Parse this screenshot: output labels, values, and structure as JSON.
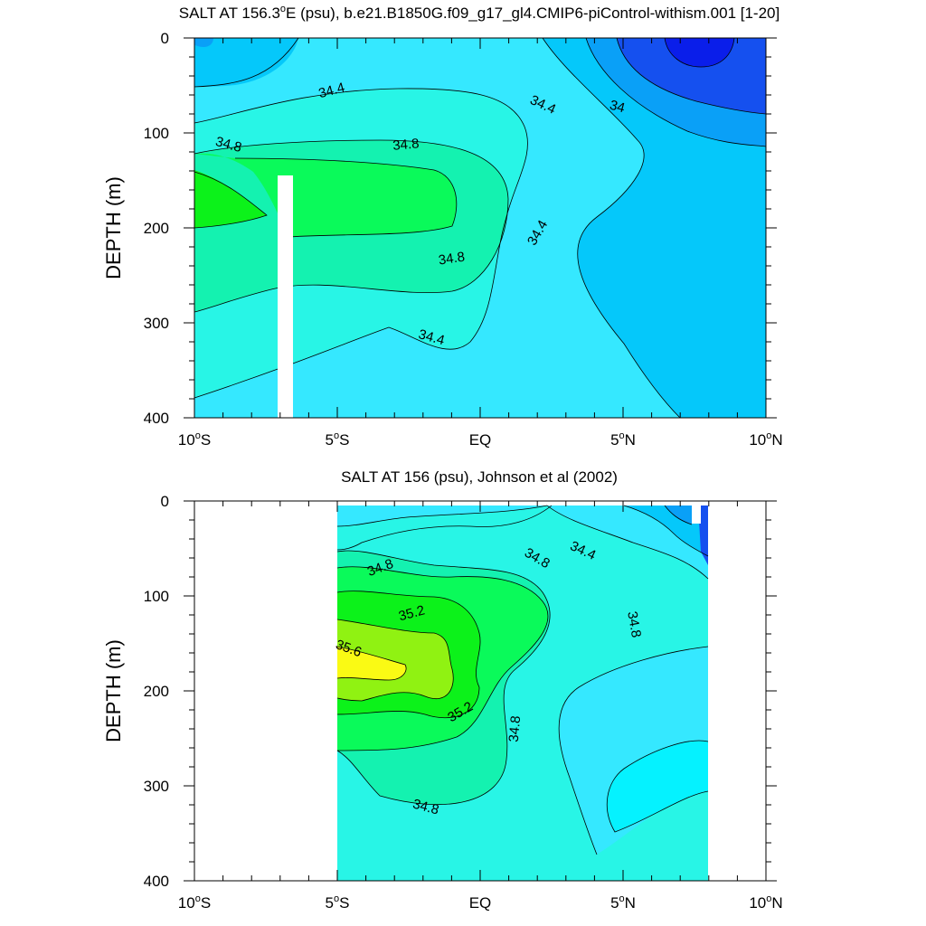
{
  "chart_data": [
    {
      "type": "contour",
      "title": "SALT AT 156.3°E (psu), b.e21.B1850G.f09_g17_gl4.CMIP6-piControl-withism.001 [1-20]",
      "title_parts": {
        "main": "SALT AT 156.3",
        "sup": "o",
        "rest": "E (psu), b.e21.B1850G.f09_g17_gl4.CMIP6-piControl-withism.001 [1-20]"
      },
      "ylabel": "DEPTH (m)",
      "xlim": [
        -10,
        10
      ],
      "ylim": [
        0,
        400
      ],
      "y_inverted": true,
      "x_ticks": [
        {
          "value": -10,
          "num": "10",
          "hemi": "S"
        },
        {
          "value": -5,
          "num": "5",
          "hemi": "S"
        },
        {
          "value": 0,
          "num": "EQ",
          "hemi": ""
        },
        {
          "value": 5,
          "num": "5",
          "hemi": "N"
        },
        {
          "value": 10,
          "num": "10",
          "hemi": "N"
        }
      ],
      "y_ticks": [
        "0",
        "100",
        "200",
        "300",
        "400"
      ],
      "y_tick_values": [
        0,
        100,
        200,
        300,
        400
      ],
      "contour_labels": [
        {
          "text": "34.4",
          "lat": -5.2,
          "depth": 55,
          "rot": -15
        },
        {
          "text": "34.8",
          "lat": -8.8,
          "depth": 112,
          "rot": 15
        },
        {
          "text": "34.8",
          "lat": -2.6,
          "depth": 112,
          "rot": -5
        },
        {
          "text": "34.4",
          "lat": 2.2,
          "depth": 70,
          "rot": 25
        },
        {
          "text": "34",
          "lat": 4.8,
          "depth": 72,
          "rot": 15
        },
        {
          "text": "34.4",
          "lat": 2.0,
          "depth": 205,
          "rot": -60
        },
        {
          "text": "34.8",
          "lat": -1.0,
          "depth": 232,
          "rot": -8
        },
        {
          "text": "34.4",
          "lat": -1.7,
          "depth": 315,
          "rot": 15
        }
      ],
      "colors": {
        "c33.6": "#0a1eea",
        "c33.8": "#1550ef",
        "c34.0": "#0aa0f7",
        "c34.2": "#05c8fa",
        "c34.4": "#35e8ff",
        "c34.6": "#28f5e6",
        "c34.8": "#14f2b0",
        "c35.0": "#0afa5a",
        "c35.2": "#0cf21a",
        "c35.4": "#90f212",
        "c35.6": "#fafa14"
      }
    },
    {
      "type": "contour",
      "title": "SALT AT 156 (psu), Johnson et al (2002)",
      "ylabel": "DEPTH (m)",
      "xlim": [
        -10,
        10
      ],
      "ylim": [
        0,
        400
      ],
      "y_inverted": true,
      "data_lat_range": [
        -5,
        8
      ],
      "x_ticks": [
        {
          "value": -10,
          "num": "10",
          "hemi": "S"
        },
        {
          "value": -5,
          "num": "5",
          "hemi": "S"
        },
        {
          "value": 0,
          "num": "EQ",
          "hemi": ""
        },
        {
          "value": 5,
          "num": "5",
          "hemi": "N"
        },
        {
          "value": 10,
          "num": "10",
          "hemi": "N"
        }
      ],
      "y_ticks": [
        "0",
        "100",
        "200",
        "300",
        "400"
      ],
      "y_tick_values": [
        0,
        100,
        200,
        300,
        400
      ],
      "contour_labels": [
        {
          "text": "34.8",
          "lat": -3.5,
          "depth": 70,
          "rot": -20
        },
        {
          "text": "34.8",
          "lat": 2.0,
          "depth": 60,
          "rot": 30
        },
        {
          "text": "34.4",
          "lat": 3.6,
          "depth": 52,
          "rot": 25
        },
        {
          "text": "35.2",
          "lat": -2.4,
          "depth": 118,
          "rot": -15
        },
        {
          "text": "34.8",
          "lat": 5.4,
          "depth": 130,
          "rot": 80
        },
        {
          "text": "35.6",
          "lat": -4.6,
          "depth": 155,
          "rot": 20
        },
        {
          "text": "35.2",
          "lat": -0.7,
          "depth": 222,
          "rot": -30
        },
        {
          "text": "34.8",
          "lat": 1.2,
          "depth": 240,
          "rot": -85
        },
        {
          "text": "34.8",
          "lat": -1.9,
          "depth": 322,
          "rot": 15
        }
      ]
    }
  ]
}
